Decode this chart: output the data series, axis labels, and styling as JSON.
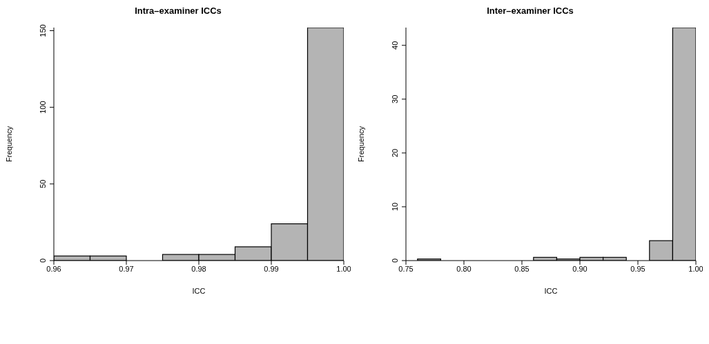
{
  "chart_data": [
    {
      "type": "histogram",
      "title": "Intra–examiner ICCs",
      "xlabel": "ICC",
      "ylabel": "Frequency",
      "bins": [
        0.96,
        0.965,
        0.97,
        0.975,
        0.98,
        0.985,
        0.99,
        0.995,
        1.0
      ],
      "values": [
        3,
        3,
        0,
        4,
        4,
        9,
        24,
        152
      ],
      "color": "#b4b4b4",
      "xlim": [
        0.96,
        1.0
      ],
      "xticks": [
        {
          "value": 0.96,
          "label": "0.96"
        },
        {
          "value": 0.97,
          "label": "0.97"
        },
        {
          "value": 0.98,
          "label": "0.98"
        },
        {
          "value": 0.99,
          "label": "0.99"
        },
        {
          "value": 1.0,
          "label": "1.00"
        }
      ],
      "ylim": [
        0,
        152
      ],
      "yticks": [
        0,
        50,
        100,
        150
      ],
      "grid": false
    },
    {
      "type": "histogram",
      "title": "Inter–examiner ICCs",
      "xlabel": "ICC",
      "ylabel": "Frequency",
      "bins": [
        0.76,
        0.78,
        0.8,
        0.82,
        0.84,
        0.86,
        0.88,
        0.9,
        0.92,
        0.94,
        0.96,
        0.98,
        1.0
      ],
      "values": [
        0.3,
        0,
        0,
        0,
        0,
        0.6,
        0.3,
        0.6,
        0.6,
        0,
        3.7,
        43.3
      ],
      "color": "#b4b4b4",
      "xlim": [
        0.75,
        1.0
      ],
      "xticks": [
        {
          "value": 0.75,
          "label": "0.75"
        },
        {
          "value": 0.8,
          "label": "0.80"
        },
        {
          "value": 0.85,
          "label": "0.85"
        },
        {
          "value": 0.9,
          "label": "0.90"
        },
        {
          "value": 0.95,
          "label": "0.95"
        },
        {
          "value": 1.0,
          "label": "1.00"
        }
      ],
      "ylim": [
        0,
        43.3
      ],
      "yticks": [
        0,
        10,
        20,
        30,
        40
      ],
      "grid": false
    }
  ]
}
